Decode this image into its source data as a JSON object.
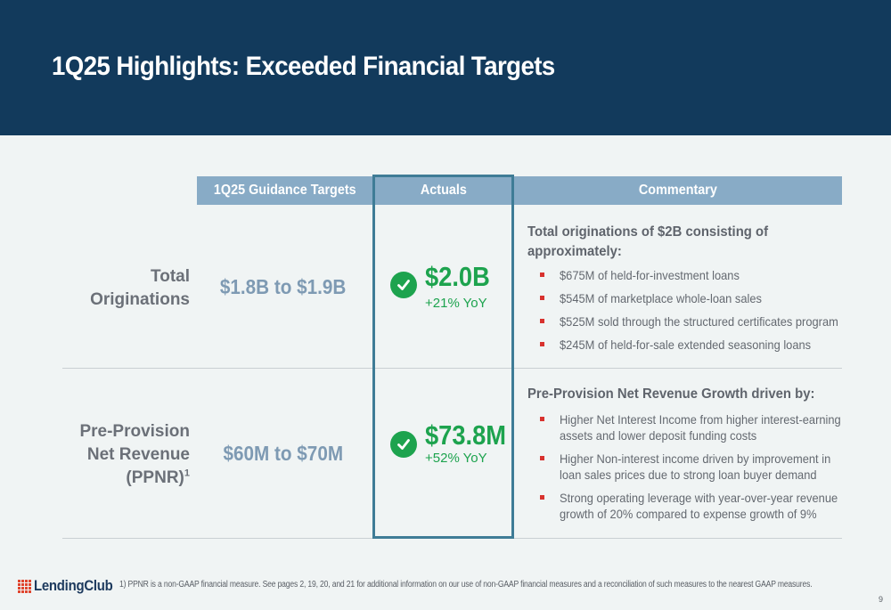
{
  "title": "1Q25 Highlights: Exceeded Financial Targets",
  "table": {
    "headers": {
      "targets": "1Q25 Guidance Targets",
      "actuals": "Actuals",
      "commentary": "Commentary"
    },
    "rows": [
      {
        "label_lines": [
          "Total",
          "Originations"
        ],
        "target": "$1.8B to $1.9B",
        "actual": "$2.0B",
        "yoy": "+21% YoY",
        "commentary_heading_lines": [
          "Total originations of $2B consisting of",
          "approximately:"
        ],
        "bullets": [
          [
            "$675M of held-for-investment loans"
          ],
          [
            "$545M of marketplace whole-loan sales"
          ],
          [
            "$525M sold through the structured certificates program"
          ],
          [
            "$245M of held-for-sale extended seasoning loans"
          ]
        ]
      },
      {
        "label_lines": [
          "Pre-Provision",
          "Net Revenue",
          "(PPNR)"
        ],
        "label_sup": "1",
        "target": "$60M to $70M",
        "actual": "$73.8M",
        "yoy": "+52% YoY",
        "commentary_heading_lines": [
          "Pre-Provision Net Revenue Growth driven by:"
        ],
        "bullets": [
          [
            "Higher Net Interest Income from higher interest-earning",
            "assets and lower deposit funding costs"
          ],
          [
            "Higher Non-interest income driven by improvement in",
            "loan sales prices due to strong loan buyer demand"
          ],
          [
            "Strong operating leverage with year-over-year revenue",
            "growth of 20% compared to expense growth of 9%"
          ]
        ]
      }
    ]
  },
  "footer": {
    "logo_text": "LendingClub",
    "footnote": "1)  PPNR is a non-GAAP financial measure. See pages 2, 19, 20, and 21 for additional information on our use of non-GAAP financial measures and a reconciliation of such measures to the nearest GAAP measures.",
    "page_number": "9"
  },
  "colors": {
    "header_bg": "#123a5c",
    "column_header_bg": "#88abc6",
    "actuals_border": "#3f7c96",
    "success_green": "#1da34e",
    "target_blue": "#7e9ab3",
    "bullet_red": "#d8322e",
    "logo_orange": "#e0452e"
  },
  "icons": {
    "check": "check-circle-icon",
    "bullet": "red-square-bullet",
    "logo": "lendingclub-grid-logo"
  }
}
